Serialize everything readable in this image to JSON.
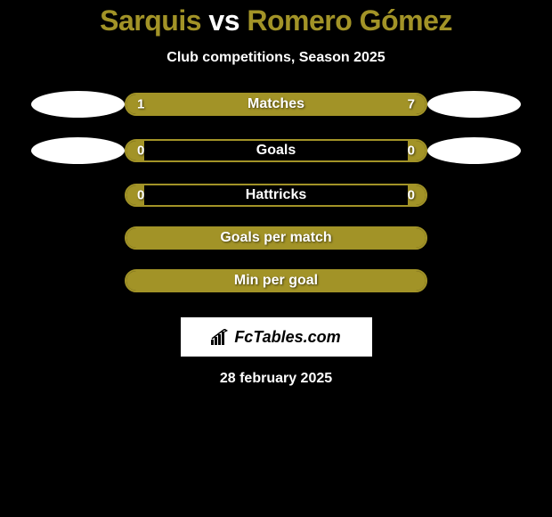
{
  "title": {
    "player1": "Sarquis",
    "vs": "vs",
    "player2": "Romero Gómez"
  },
  "subtitle": "Club competitions, Season 2025",
  "colors": {
    "accent": "#a29327",
    "background": "#000000",
    "text": "#ffffff",
    "ellipse": "#ffffff"
  },
  "stats": [
    {
      "label": "Matches",
      "left_value": "1",
      "right_value": "7",
      "left_pct": 12.5,
      "right_pct": 87.5,
      "show_ellipse": true,
      "show_values": true,
      "fill_mode": "split"
    },
    {
      "label": "Goals",
      "left_value": "0",
      "right_value": "0",
      "left_pct": 6,
      "right_pct": 6,
      "show_ellipse": true,
      "show_values": true,
      "fill_mode": "edges"
    },
    {
      "label": "Hattricks",
      "left_value": "0",
      "right_value": "0",
      "left_pct": 6,
      "right_pct": 6,
      "show_ellipse": false,
      "show_values": true,
      "fill_mode": "edges"
    },
    {
      "label": "Goals per match",
      "left_value": "",
      "right_value": "",
      "left_pct": 0,
      "right_pct": 0,
      "show_ellipse": false,
      "show_values": false,
      "fill_mode": "full"
    },
    {
      "label": "Min per goal",
      "left_value": "",
      "right_value": "",
      "left_pct": 0,
      "right_pct": 0,
      "show_ellipse": false,
      "show_values": false,
      "fill_mode": "full"
    }
  ],
  "brand": "FcTables.com",
  "date": "28 february 2025"
}
